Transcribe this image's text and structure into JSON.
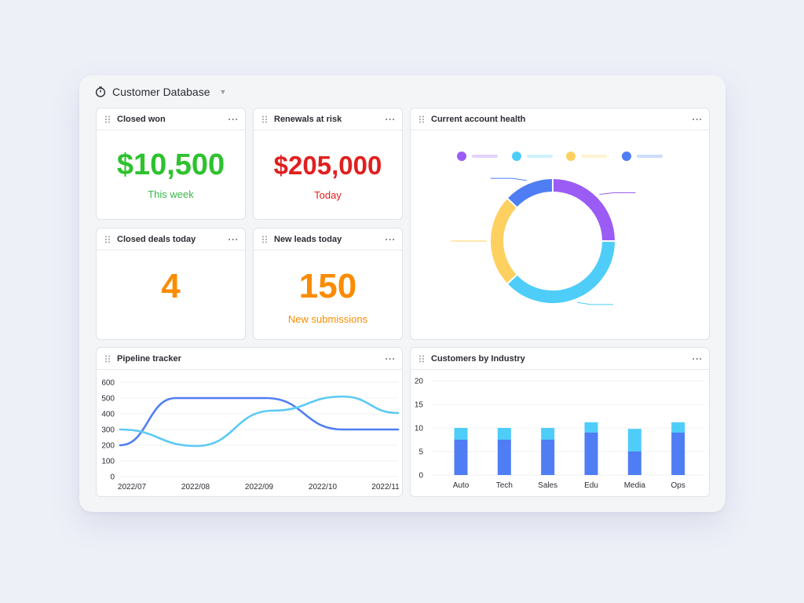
{
  "header": {
    "title": "Customer Database"
  },
  "colors": {
    "green": "#2ec22e",
    "red": "#e02020",
    "orange": "#fb8c00",
    "purple": "#9b5cf6",
    "cyan": "#4fcdf9",
    "yellow": "#fdd05f",
    "blue": "#4f7df3",
    "line_blue": "#4f7df3",
    "line_cyan": "#5ccaf5"
  },
  "cards": {
    "closed_won": {
      "title": "Closed won",
      "value": "$10,500",
      "sub": "This week"
    },
    "renewals": {
      "title": "Renewals at risk",
      "value": "$205,000",
      "sub": "Today"
    },
    "closed_deals": {
      "title": "Closed deals today",
      "value": "4"
    },
    "new_leads": {
      "title": "New leads today",
      "value": "150",
      "sub": "New submissions"
    },
    "health": {
      "title": "Current account health"
    },
    "pipeline": {
      "title": "Pipeline tracker"
    },
    "industry": {
      "title": "Customers by Industry"
    },
    "more_label": "···"
  },
  "chart_data": [
    {
      "type": "pie",
      "variant": "donut",
      "slices": [
        {
          "color": "#9b5cf6",
          "value": 25
        },
        {
          "color": "#4fcdf9",
          "value": 38
        },
        {
          "color": "#fdd05f",
          "value": 24
        },
        {
          "color": "#4f7df3",
          "value": 13
        }
      ]
    },
    {
      "type": "line",
      "categories": [
        "2022/07",
        "2022/08",
        "2022/09",
        "2022/10",
        "2022/11"
      ],
      "ylim": [
        0,
        600
      ],
      "yticks": [
        0,
        100,
        200,
        300,
        400,
        500,
        600
      ],
      "grid": true,
      "series": [
        {
          "color": "#4f7df3",
          "values": [
            [
              0,
              200
            ],
            [
              0.8,
              500
            ],
            [
              2.1,
              500
            ],
            [
              3.2,
              300
            ],
            [
              4,
              300
            ]
          ]
        },
        {
          "color": "#5ccaf5",
          "values": [
            [
              0,
              300
            ],
            [
              1.1,
              195
            ],
            [
              2.2,
              420
            ],
            [
              3.2,
              510
            ],
            [
              4,
              405
            ]
          ]
        }
      ]
    },
    {
      "type": "bar",
      "stacked": true,
      "categories": [
        "Auto",
        "Tech",
        "Sales",
        "Edu",
        "Media",
        "Ops"
      ],
      "ylim": [
        0,
        20
      ],
      "yticks": [
        0,
        5,
        10,
        15,
        20
      ],
      "series": [
        {
          "color": "#4f7df3",
          "values": [
            7.5,
            7.5,
            7.5,
            9,
            5,
            9
          ]
        },
        {
          "color": "#4fcdf9",
          "values": [
            2.5,
            2.5,
            2.5,
            2.2,
            4.8,
            2.2
          ]
        }
      ]
    }
  ]
}
